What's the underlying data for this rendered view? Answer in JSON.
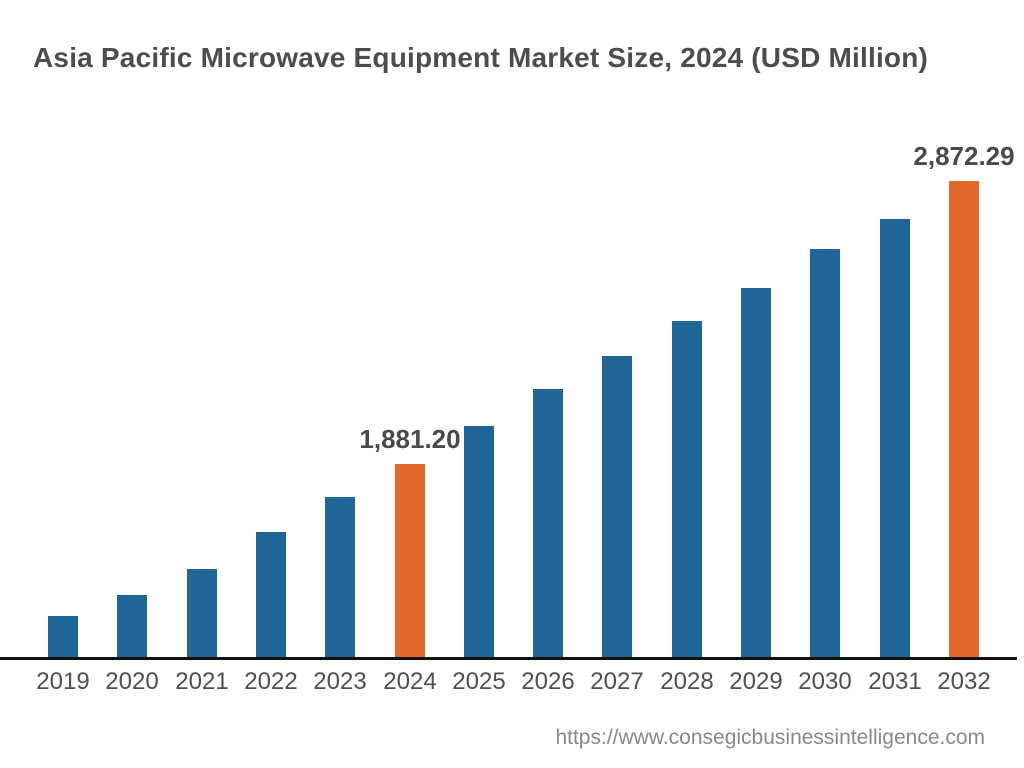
{
  "chart_data": {
    "type": "bar",
    "title": "Asia Pacific Microwave Equipment Market Size, 2024 (USD Million)",
    "xlabel": "",
    "ylabel": "",
    "unit": "USD Million",
    "categories": [
      "2019",
      "2020",
      "2021",
      "2022",
      "2023",
      "2024",
      "2025",
      "2026",
      "2027",
      "2028",
      "2029",
      "2030",
      "2031",
      "2032"
    ],
    "values": [
      1348.9,
      1422.4,
      1513.5,
      1643.1,
      1765.6,
      1881.2,
      2014.3,
      2143.8,
      2259.4,
      2382.0,
      2497.5,
      2634.1,
      2739.2,
      2872.29
    ],
    "value_labels": {
      "2024": "1,881.20",
      "2032": "2,872.29"
    },
    "highlighted_categories": [
      "2024",
      "2032"
    ],
    "legend_visible": false,
    "gridlines": false,
    "axis": {
      "x_axis_visible": true,
      "y_axis_visible": false,
      "value_at_baseline": 1205.3,
      "units_per_pixel": 3.502
    },
    "colors": {
      "bar": "#1F6598",
      "highlight": "#E2692B",
      "axis_line": "#111111",
      "title_text": "#4D4D4D",
      "tick_text": "#4F4F4F",
      "value_label_text": "#4A4A4A",
      "source_text": "#888888"
    }
  },
  "footer": {
    "source_url": "https://www.consegicbusinessintelligence.com"
  }
}
